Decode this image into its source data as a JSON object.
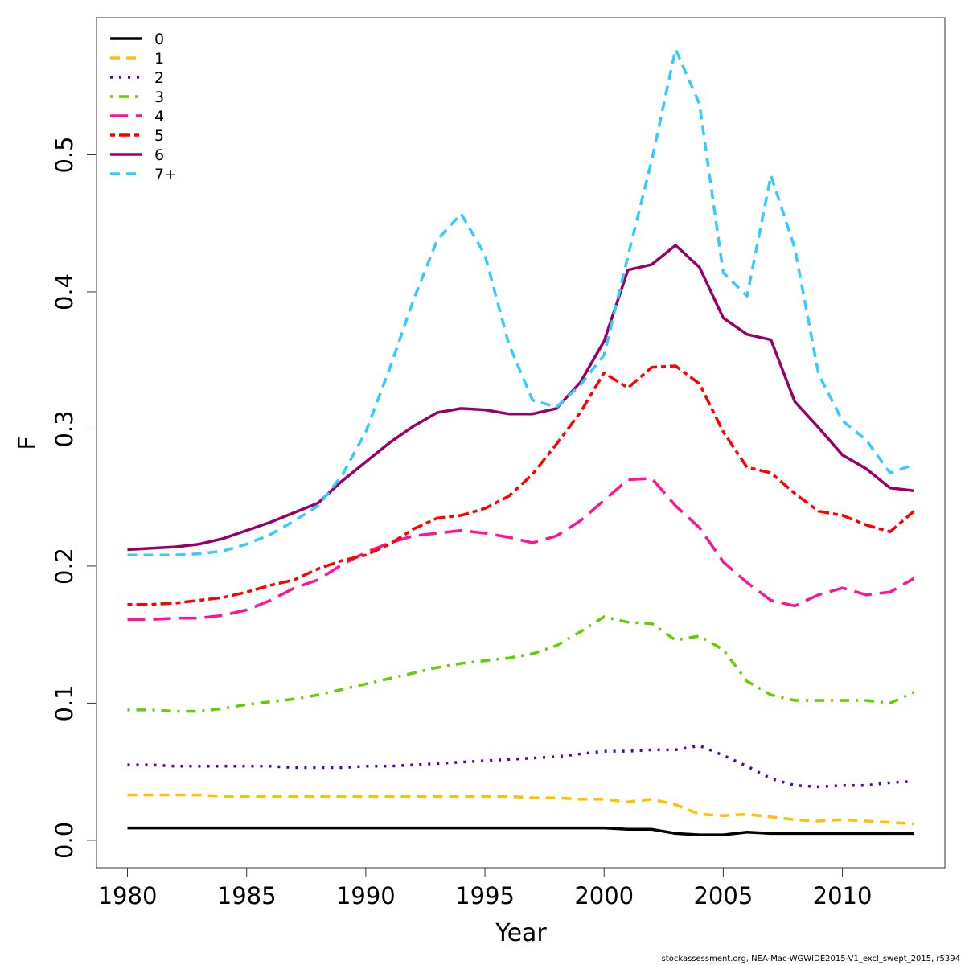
{
  "chart_data": {
    "type": "line",
    "xlabel": "Year",
    "ylabel": "F",
    "xlim": [
      1978.7,
      2014.3
    ],
    "ylim": [
      -0.02,
      0.6
    ],
    "x_ticks": [
      1980,
      1985,
      1990,
      1995,
      2000,
      2005,
      2010
    ],
    "y_ticks": [
      0.0,
      0.1,
      0.2,
      0.3,
      0.4,
      0.5
    ],
    "y_tick_labels": [
      "0.0",
      "0.1",
      "0.2",
      "0.3",
      "0.4",
      "0.5"
    ],
    "x_tick_labels": [
      "1980",
      "1985",
      "1990",
      "1995",
      "2000",
      "2005",
      "2010"
    ],
    "grid": false,
    "legend_position": "top-left",
    "x": [
      1980,
      1981,
      1982,
      1983,
      1984,
      1985,
      1986,
      1987,
      1988,
      1989,
      1990,
      1991,
      1992,
      1993,
      1994,
      1995,
      1996,
      1997,
      1998,
      1999,
      2000,
      2001,
      2002,
      2003,
      2004,
      2005,
      2006,
      2007,
      2008,
      2009,
      2010,
      2011,
      2012,
      2013
    ],
    "series": [
      {
        "name": "0",
        "color": "#000000",
        "dash": "solid",
        "values": [
          0.009,
          0.009,
          0.009,
          0.009,
          0.009,
          0.009,
          0.009,
          0.009,
          0.009,
          0.009,
          0.009,
          0.009,
          0.009,
          0.009,
          0.009,
          0.009,
          0.009,
          0.009,
          0.009,
          0.009,
          0.009,
          0.008,
          0.008,
          0.005,
          0.004,
          0.004,
          0.006,
          0.005,
          0.005,
          0.005,
          0.005,
          0.005,
          0.005,
          0.005
        ]
      },
      {
        "name": "1",
        "color": "#FFC000",
        "dash": "dashed",
        "values": [
          0.033,
          0.033,
          0.033,
          0.033,
          0.032,
          0.032,
          0.032,
          0.032,
          0.032,
          0.032,
          0.032,
          0.032,
          0.032,
          0.032,
          0.032,
          0.032,
          0.032,
          0.031,
          0.031,
          0.03,
          0.03,
          0.028,
          0.03,
          0.026,
          0.019,
          0.018,
          0.019,
          0.017,
          0.015,
          0.014,
          0.015,
          0.014,
          0.013,
          0.012
        ]
      },
      {
        "name": "2",
        "color": "#5B00A0",
        "dash": "dotted",
        "values": [
          0.055,
          0.055,
          0.054,
          0.054,
          0.054,
          0.054,
          0.054,
          0.053,
          0.053,
          0.053,
          0.054,
          0.054,
          0.055,
          0.056,
          0.057,
          0.058,
          0.059,
          0.06,
          0.061,
          0.063,
          0.065,
          0.065,
          0.066,
          0.066,
          0.069,
          0.062,
          0.054,
          0.045,
          0.04,
          0.039,
          0.04,
          0.04,
          0.042,
          0.043
        ]
      },
      {
        "name": "3",
        "color": "#66CC00",
        "dash": "dotdash",
        "values": [
          0.095,
          0.095,
          0.094,
          0.094,
          0.096,
          0.099,
          0.101,
          0.103,
          0.106,
          0.11,
          0.114,
          0.118,
          0.122,
          0.126,
          0.129,
          0.131,
          0.133,
          0.136,
          0.142,
          0.152,
          0.163,
          0.159,
          0.158,
          0.146,
          0.149,
          0.139,
          0.116,
          0.106,
          0.102,
          0.102,
          0.102,
          0.102,
          0.1,
          0.108
        ]
      },
      {
        "name": "4",
        "color": "#FF1493",
        "dash": "longdash",
        "values": [
          0.161,
          0.161,
          0.162,
          0.162,
          0.164,
          0.168,
          0.175,
          0.184,
          0.19,
          0.201,
          0.21,
          0.217,
          0.222,
          0.224,
          0.226,
          0.224,
          0.221,
          0.217,
          0.222,
          0.233,
          0.248,
          0.263,
          0.264,
          0.244,
          0.228,
          0.203,
          0.188,
          0.175,
          0.171,
          0.179,
          0.184,
          0.179,
          0.181,
          0.191
        ]
      },
      {
        "name": "5",
        "color": "#FF0000",
        "dash": "twodash",
        "values": [
          0.172,
          0.172,
          0.173,
          0.175,
          0.177,
          0.181,
          0.186,
          0.19,
          0.198,
          0.204,
          0.208,
          0.216,
          0.227,
          0.235,
          0.237,
          0.242,
          0.251,
          0.267,
          0.289,
          0.312,
          0.341,
          0.33,
          0.345,
          0.346,
          0.333,
          0.298,
          0.272,
          0.268,
          0.253,
          0.24,
          0.237,
          0.23,
          0.225,
          0.24
        ]
      },
      {
        "name": "6",
        "color": "#990066",
        "dash": "solid",
        "values": [
          0.212,
          0.213,
          0.214,
          0.216,
          0.22,
          0.226,
          0.232,
          0.239,
          0.246,
          0.262,
          0.276,
          0.29,
          0.302,
          0.312,
          0.315,
          0.314,
          0.311,
          0.311,
          0.315,
          0.334,
          0.364,
          0.416,
          0.42,
          0.434,
          0.418,
          0.381,
          0.369,
          0.365,
          0.32,
          0.301,
          0.281,
          0.271,
          0.257,
          0.255
        ]
      },
      {
        "name": "7+",
        "color": "#33CCFF",
        "dash": "dashed",
        "values": [
          0.208,
          0.208,
          0.208,
          0.209,
          0.211,
          0.216,
          0.223,
          0.233,
          0.244,
          0.266,
          0.298,
          0.344,
          0.394,
          0.438,
          0.457,
          0.427,
          0.362,
          0.321,
          0.316,
          0.332,
          0.354,
          0.426,
          0.496,
          0.577,
          0.537,
          0.414,
          0.397,
          0.485,
          0.432,
          0.34,
          0.306,
          0.292,
          0.268,
          0.274
        ]
      }
    ]
  },
  "footer": "stockassessment.org, NEA-Mac-WGWIDE2015-V1_excl_swept_2015, r5394"
}
